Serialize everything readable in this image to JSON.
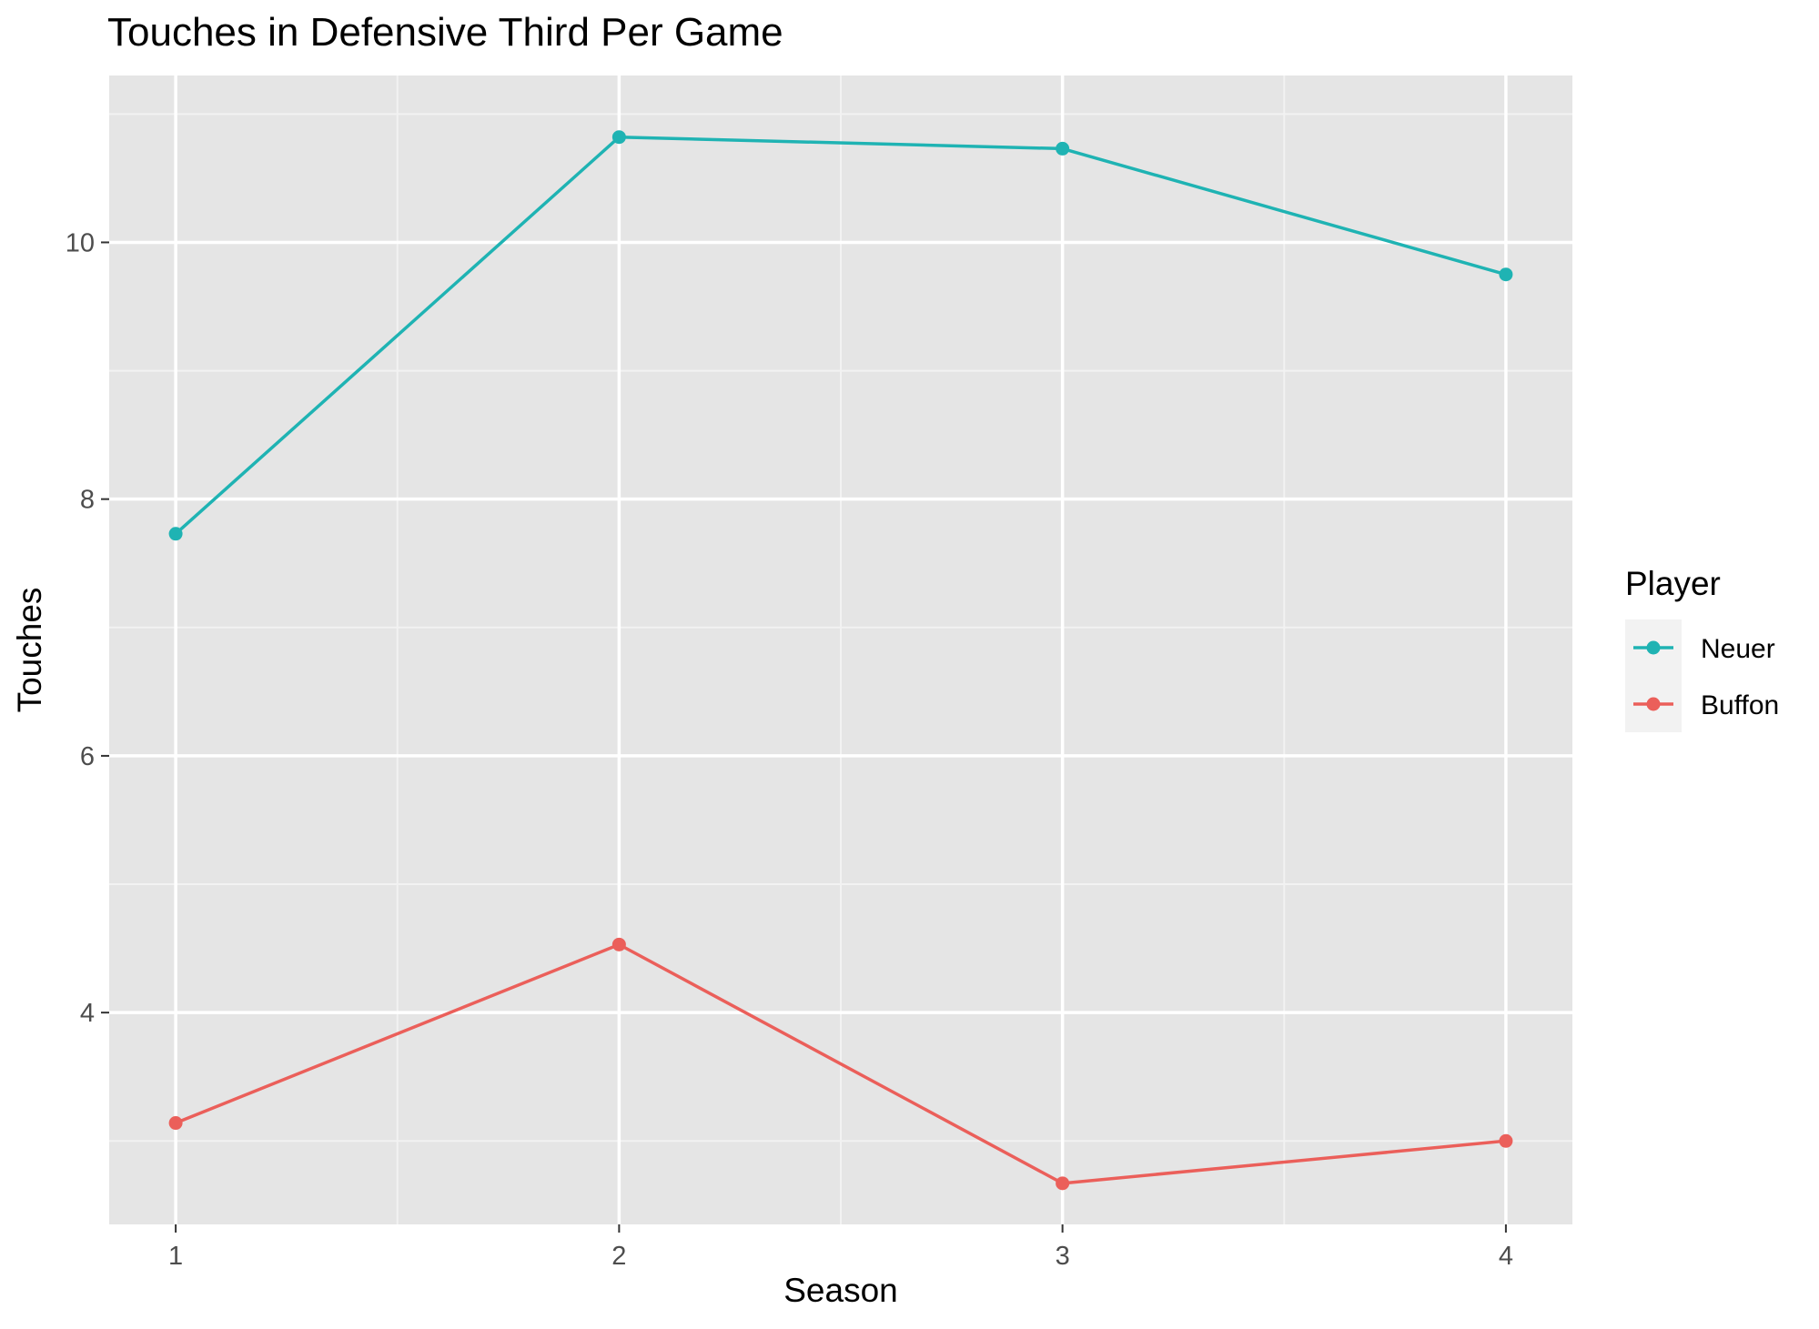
{
  "chart_data": {
    "type": "line",
    "title": "Touches in Defensive Third Per Game",
    "xlabel": "Season",
    "ylabel": "Touches",
    "x": [
      1,
      2,
      3,
      4
    ],
    "x_tick_labels": [
      "1",
      "2",
      "3",
      "4"
    ],
    "y_ticks": [
      4,
      6,
      8,
      10
    ],
    "y_tick_labels": [
      "4",
      "6",
      "8",
      "10"
    ],
    "xlim": [
      0.85,
      4.15
    ],
    "ylim": [
      2.35,
      11.3
    ],
    "grid": true,
    "legend": {
      "title": "Player",
      "position": "right"
    },
    "series": [
      {
        "name": "Neuer",
        "color": "#1fb3b3",
        "values": [
          7.73,
          10.82,
          10.73,
          9.75
        ]
      },
      {
        "name": "Buffon",
        "color": "#eb5f5a",
        "values": [
          3.14,
          4.53,
          2.67,
          3.0
        ]
      }
    ]
  }
}
